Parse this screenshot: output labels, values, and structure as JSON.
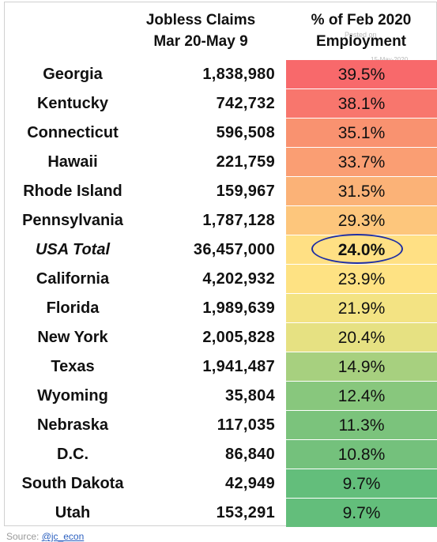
{
  "header": {
    "claims_line1": "Jobless Claims",
    "claims_line2": "Mar 20-May 9",
    "pct_line1": "% of Feb 2020",
    "pct_line2": "Employment"
  },
  "watermark": {
    "line1": "Posted on",
    "line2": "15-May-2020"
  },
  "source": {
    "label": "Source:",
    "link": "@jc_econ"
  },
  "colors": {
    "high": "#f8696b",
    "mid": "#ffe084",
    "low": "#63be7b",
    "highlight_ring": "#1f2fa3"
  },
  "chart_data": {
    "type": "table",
    "columns": [
      "",
      "Jobless Claims Mar 20-May 9",
      "% of Feb 2020 Employment"
    ],
    "highlighted_row": "USA Total",
    "rows": [
      {
        "state": "Georgia",
        "claims": "1,838,980",
        "pct": "39.5%",
        "pct_value": 39.5,
        "color": "#f8696b"
      },
      {
        "state": "Kentucky",
        "claims": "742,732",
        "pct": "38.1%",
        "pct_value": 38.1,
        "color": "#f8766d"
      },
      {
        "state": "Connecticut",
        "claims": "596,508",
        "pct": "35.1%",
        "pct_value": 35.1,
        "color": "#f99270"
      },
      {
        "state": "Hawaii",
        "claims": "221,759",
        "pct": "33.7%",
        "pct_value": 33.7,
        "color": "#fa9e73"
      },
      {
        "state": "Rhode Island",
        "claims": "159,967",
        "pct": "31.5%",
        "pct_value": 31.5,
        "color": "#fbb277"
      },
      {
        "state": "Pennsylvania",
        "claims": "1,787,128",
        "pct": "29.3%",
        "pct_value": 29.3,
        "color": "#fdc67c"
      },
      {
        "state": "USA Total",
        "claims": "36,457,000",
        "pct": "24.0%",
        "pct_value": 24.0,
        "color": "#ffe084",
        "total": true
      },
      {
        "state": "California",
        "claims": "4,202,932",
        "pct": "23.9%",
        "pct_value": 23.9,
        "color": "#fee283"
      },
      {
        "state": "Florida",
        "claims": "1,989,639",
        "pct": "21.9%",
        "pct_value": 21.9,
        "color": "#f3e383"
      },
      {
        "state": "New York",
        "claims": "2,005,828",
        "pct": "20.4%",
        "pct_value": 20.4,
        "color": "#e6e182"
      },
      {
        "state": "Texas",
        "claims": "1,941,487",
        "pct": "14.9%",
        "pct_value": 14.9,
        "color": "#a7d07f"
      },
      {
        "state": "Wyoming",
        "claims": "35,804",
        "pct": "12.4%",
        "pct_value": 12.4,
        "color": "#88c77d"
      },
      {
        "state": "Nebraska",
        "claims": "117,035",
        "pct": "11.3%",
        "pct_value": 11.3,
        "color": "#7bc37c"
      },
      {
        "state": "D.C.",
        "claims": "86,840",
        "pct": "10.8%",
        "pct_value": 10.8,
        "color": "#74c17c"
      },
      {
        "state": "South Dakota",
        "claims": "42,949",
        "pct": "9.7%",
        "pct_value": 9.7,
        "color": "#63be7b"
      },
      {
        "state": "Utah",
        "claims": "153,291",
        "pct": "9.7%",
        "pct_value": 9.7,
        "color": "#63be7b"
      }
    ]
  }
}
